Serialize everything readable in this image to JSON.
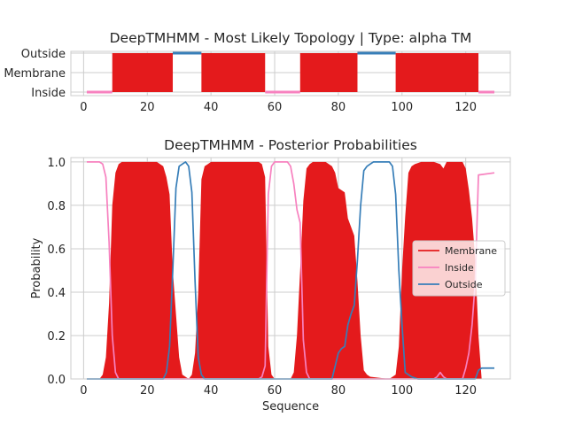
{
  "colors": {
    "membrane": "#e41a1c",
    "inside": "#f781bf",
    "outside": "#377eb8",
    "grid": "#cccccc",
    "axis": "#cccccc"
  },
  "chart_data": [
    {
      "type": "area",
      "title": "DeepTMHMM - Most Likely Topology | Type: alpha TM",
      "xlabel": "",
      "ylabel": "",
      "xlim": [
        -4,
        134
      ],
      "x_ticks": [
        0,
        20,
        40,
        60,
        80,
        100,
        120
      ],
      "categories": [
        "Inside",
        "Membrane",
        "Outside"
      ],
      "grid": true,
      "segments": [
        {
          "label": "Inside",
          "start": 1,
          "end": 9
        },
        {
          "label": "Membrane",
          "start": 9,
          "end": 28
        },
        {
          "label": "Outside",
          "start": 28,
          "end": 37
        },
        {
          "label": "Membrane",
          "start": 37,
          "end": 57
        },
        {
          "label": "Inside",
          "start": 57,
          "end": 68
        },
        {
          "label": "Membrane",
          "start": 68,
          "end": 86
        },
        {
          "label": "Outside",
          "start": 86,
          "end": 98
        },
        {
          "label": "Membrane",
          "start": 98,
          "end": 124
        },
        {
          "label": "Inside",
          "start": 124,
          "end": 129
        }
      ]
    },
    {
      "type": "line",
      "title": "DeepTMHMM - Posterior Probabilities",
      "xlabel": "Sequence",
      "ylabel": "Probability",
      "xlim": [
        -4,
        134
      ],
      "ylim": [
        0,
        1.02
      ],
      "x_ticks": [
        0,
        20,
        40,
        60,
        80,
        100,
        120
      ],
      "y_ticks": [
        "0.0",
        "0.2",
        "0.4",
        "0.6",
        "0.8",
        "1.0"
      ],
      "grid": true,
      "legend_position": "center-right",
      "series": [
        {
          "name": "Membrane",
          "kind": "fill",
          "points": [
            [
              1,
              0
            ],
            [
              5,
              0
            ],
            [
              6,
              0.02
            ],
            [
              7,
              0.1
            ],
            [
              8,
              0.35
            ],
            [
              9,
              0.8
            ],
            [
              10,
              0.95
            ],
            [
              11,
              0.99
            ],
            [
              12,
              1.0
            ],
            [
              23,
              1.0
            ],
            [
              25,
              0.98
            ],
            [
              26,
              0.93
            ],
            [
              27,
              0.85
            ],
            [
              28,
              0.5
            ],
            [
              29,
              0.3
            ],
            [
              30,
              0.1
            ],
            [
              31,
              0.02
            ],
            [
              33,
              0.0
            ],
            [
              34,
              0.02
            ],
            [
              35,
              0.12
            ],
            [
              36,
              0.4
            ],
            [
              37,
              0.92
            ],
            [
              38,
              0.98
            ],
            [
              39,
              0.99
            ],
            [
              40,
              1.0
            ],
            [
              55,
              1.0
            ],
            [
              56,
              0.99
            ],
            [
              57,
              0.93
            ],
            [
              58,
              0.15
            ],
            [
              59,
              0.02
            ],
            [
              60,
              0.0
            ],
            [
              65,
              0.0
            ],
            [
              66,
              0.03
            ],
            [
              67,
              0.2
            ],
            [
              68,
              0.5
            ],
            [
              69,
              0.82
            ],
            [
              70,
              0.97
            ],
            [
              71,
              0.99
            ],
            [
              72,
              1.0
            ],
            [
              76,
              1.0
            ],
            [
              78,
              0.98
            ],
            [
              79,
              0.95
            ],
            [
              80,
              0.88
            ],
            [
              82,
              0.86
            ],
            [
              83,
              0.74
            ],
            [
              84,
              0.7
            ],
            [
              85,
              0.66
            ],
            [
              86,
              0.45
            ],
            [
              87,
              0.2
            ],
            [
              88,
              0.04
            ],
            [
              89,
              0.02
            ],
            [
              90,
              0.01
            ],
            [
              96,
              0.0
            ],
            [
              98,
              0.02
            ],
            [
              99,
              0.15
            ],
            [
              100,
              0.5
            ],
            [
              101,
              0.75
            ],
            [
              102,
              0.95
            ],
            [
              103,
              0.98
            ],
            [
              104,
              0.99
            ],
            [
              106,
              1.0
            ],
            [
              110,
              1.0
            ],
            [
              112,
              0.99
            ],
            [
              113,
              0.97
            ],
            [
              114,
              1.0
            ],
            [
              119,
              1.0
            ],
            [
              120,
              0.97
            ],
            [
              121,
              0.87
            ],
            [
              122,
              0.74
            ],
            [
              123,
              0.55
            ],
            [
              124,
              0.2
            ],
            [
              125,
              0.0
            ],
            [
              129,
              0.0
            ]
          ]
        },
        {
          "name": "Inside",
          "kind": "line",
          "points": [
            [
              1,
              1.0
            ],
            [
              5,
              1.0
            ],
            [
              6,
              0.99
            ],
            [
              7,
              0.93
            ],
            [
              8,
              0.63
            ],
            [
              9,
              0.2
            ],
            [
              10,
              0.03
            ],
            [
              11,
              0.0
            ],
            [
              55,
              0.0
            ],
            [
              56,
              0.01
            ],
            [
              57,
              0.06
            ],
            [
              58,
              0.85
            ],
            [
              59,
              0.98
            ],
            [
              60,
              1.0
            ],
            [
              64,
              1.0
            ],
            [
              65,
              0.98
            ],
            [
              66,
              0.9
            ],
            [
              67,
              0.78
            ],
            [
              68,
              0.72
            ],
            [
              69,
              0.18
            ],
            [
              70,
              0.03
            ],
            [
              71,
              0.0
            ],
            [
              110,
              0.0
            ],
            [
              111,
              0.01
            ],
            [
              112,
              0.03
            ],
            [
              113,
              0.01
            ],
            [
              114,
              0.0
            ],
            [
              119,
              0.0
            ],
            [
              120,
              0.05
            ],
            [
              121,
              0.12
            ],
            [
              122,
              0.25
            ],
            [
              123,
              0.45
            ],
            [
              124,
              0.94
            ],
            [
              129,
              0.95
            ]
          ]
        },
        {
          "name": "Outside",
          "kind": "line",
          "points": [
            [
              1,
              0.0
            ],
            [
              25,
              0.0
            ],
            [
              26,
              0.03
            ],
            [
              27,
              0.15
            ],
            [
              28,
              0.5
            ],
            [
              29,
              0.88
            ],
            [
              30,
              0.98
            ],
            [
              31,
              0.99
            ],
            [
              32,
              1.0
            ],
            [
              33,
              0.98
            ],
            [
              34,
              0.86
            ],
            [
              35,
              0.45
            ],
            [
              36,
              0.1
            ],
            [
              37,
              0.02
            ],
            [
              38,
              0.0
            ],
            [
              78,
              0.0
            ],
            [
              79,
              0.06
            ],
            [
              80,
              0.12
            ],
            [
              81,
              0.14
            ],
            [
              82,
              0.15
            ],
            [
              83,
              0.25
            ],
            [
              84,
              0.3
            ],
            [
              85,
              0.34
            ],
            [
              86,
              0.55
            ],
            [
              87,
              0.8
            ],
            [
              88,
              0.96
            ],
            [
              89,
              0.98
            ],
            [
              90,
              0.99
            ],
            [
              91,
              1.0
            ],
            [
              96,
              1.0
            ],
            [
              97,
              0.98
            ],
            [
              98,
              0.85
            ],
            [
              99,
              0.5
            ],
            [
              100,
              0.25
            ],
            [
              101,
              0.03
            ],
            [
              103,
              0.01
            ],
            [
              105,
              0.0
            ],
            [
              123,
              0.0
            ],
            [
              124,
              0.04
            ],
            [
              125,
              0.05
            ],
            [
              129,
              0.05
            ]
          ]
        }
      ]
    }
  ]
}
